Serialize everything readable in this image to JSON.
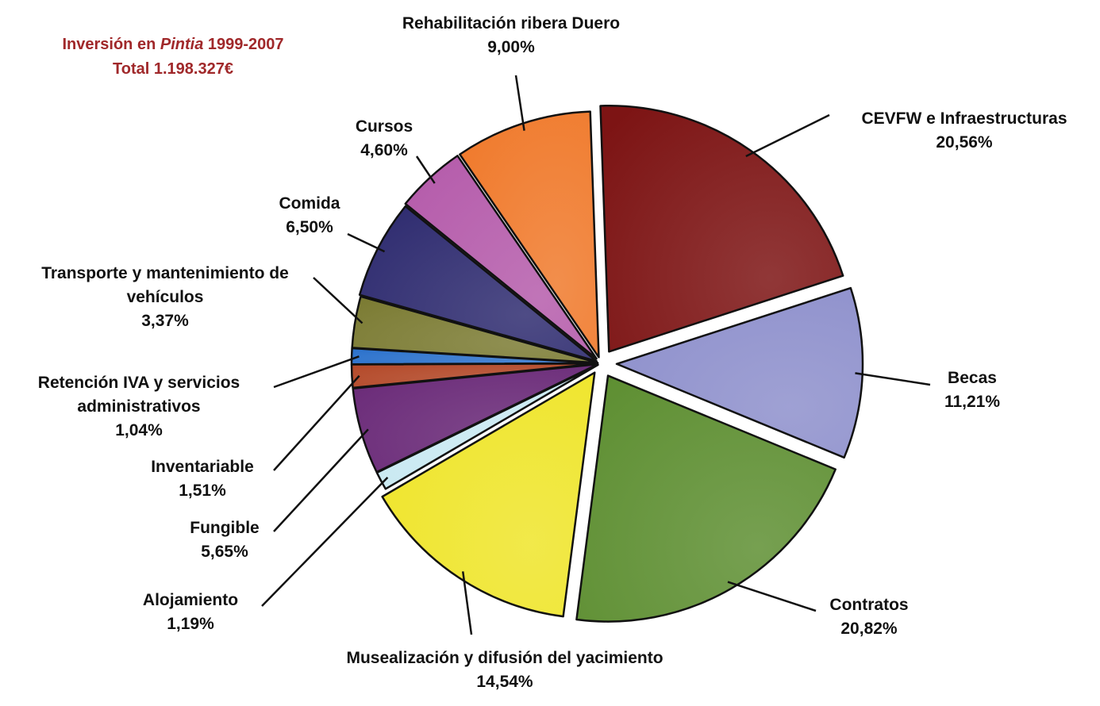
{
  "chart_data": {
    "type": "pie",
    "title": [
      "Inversión en ",
      "Pintia",
      " 1999-2007"
    ],
    "subtitle": "Total 1.198.327€",
    "categories": [
      "CEVFW e Infraestructuras",
      "Becas",
      "Contratos",
      "Musealización y difusión del yacimiento",
      "Alojamiento",
      "Fungible",
      "Inventariable",
      "Retención IVA y servicios administrativos",
      "Transporte y mantenimiento de vehículos",
      "Comida",
      "Cursos",
      "Rehabilitación ribera Duero"
    ],
    "values": [
      20.56,
      11.21,
      20.82,
      14.54,
      1.19,
      5.65,
      1.51,
      1.04,
      3.37,
      6.5,
      4.6,
      9.0
    ],
    "value_labels": [
      "20,56%",
      "11,21%",
      "20,82%",
      "14,54%",
      "1,19%",
      "5,65%",
      "1,51%",
      "1,04%",
      "3,37%",
      "6,50%",
      "4,60%",
      "9,00%"
    ],
    "colors": [
      "#7d1414",
      "#8e90cc",
      "#5e8f32",
      "#efe52a",
      "#c9e9f2",
      "#6a2a78",
      "#b44a2a",
      "#2c72cc",
      "#7c7c34",
      "#2f2c70",
      "#b55cab",
      "#f07a2c"
    ]
  }
}
